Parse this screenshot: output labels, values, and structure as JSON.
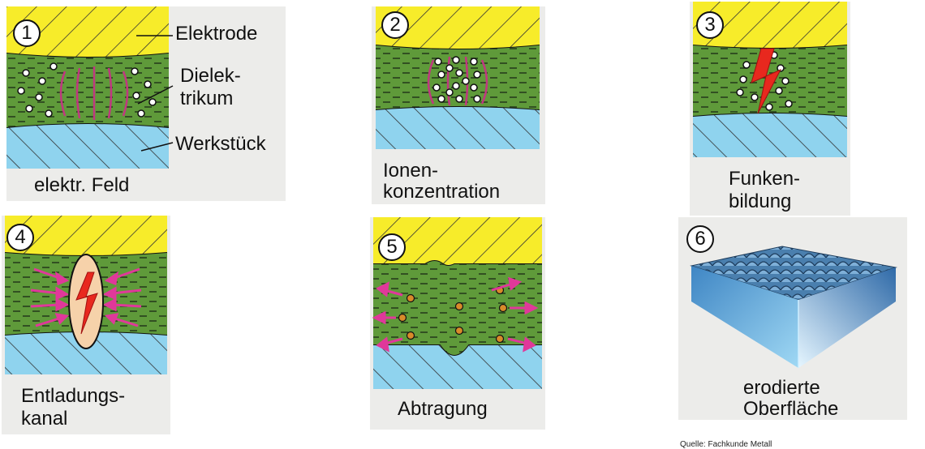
{
  "steps": [
    {
      "number": "1",
      "caption_lines": [
        "elektr. Feld"
      ]
    },
    {
      "number": "2",
      "caption_lines": [
        "Ionen-",
        "konzentration"
      ]
    },
    {
      "number": "3",
      "caption_lines": [
        "Funken-",
        "bildung"
      ]
    },
    {
      "number": "4",
      "caption_lines": [
        "Entladungs-",
        "kanal"
      ]
    },
    {
      "number": "5",
      "caption_lines": [
        "Abtragung"
      ]
    },
    {
      "number": "6",
      "caption_lines": [
        "erodierte",
        "Oberfläche"
      ]
    }
  ],
  "labels": {
    "electrode": "Elektrode",
    "dielectric_line1": "Dielek-",
    "dielectric_line2": "trikum",
    "workpiece": "Werkstück"
  },
  "source": "Quelle:   Fachkunde Metall",
  "colors": {
    "electrode": "#f7ec2a",
    "dielectric": "#5f9a3a",
    "workpiece": "#8fd3ee",
    "field_lines": "#c03880",
    "spark": "#e8281e",
    "arrows": "#e0389a",
    "particles": "#d88b2a",
    "channel": "#f6d2aa",
    "surface_top": "#3a6fa0",
    "surface_side": "#6ab7e3"
  }
}
